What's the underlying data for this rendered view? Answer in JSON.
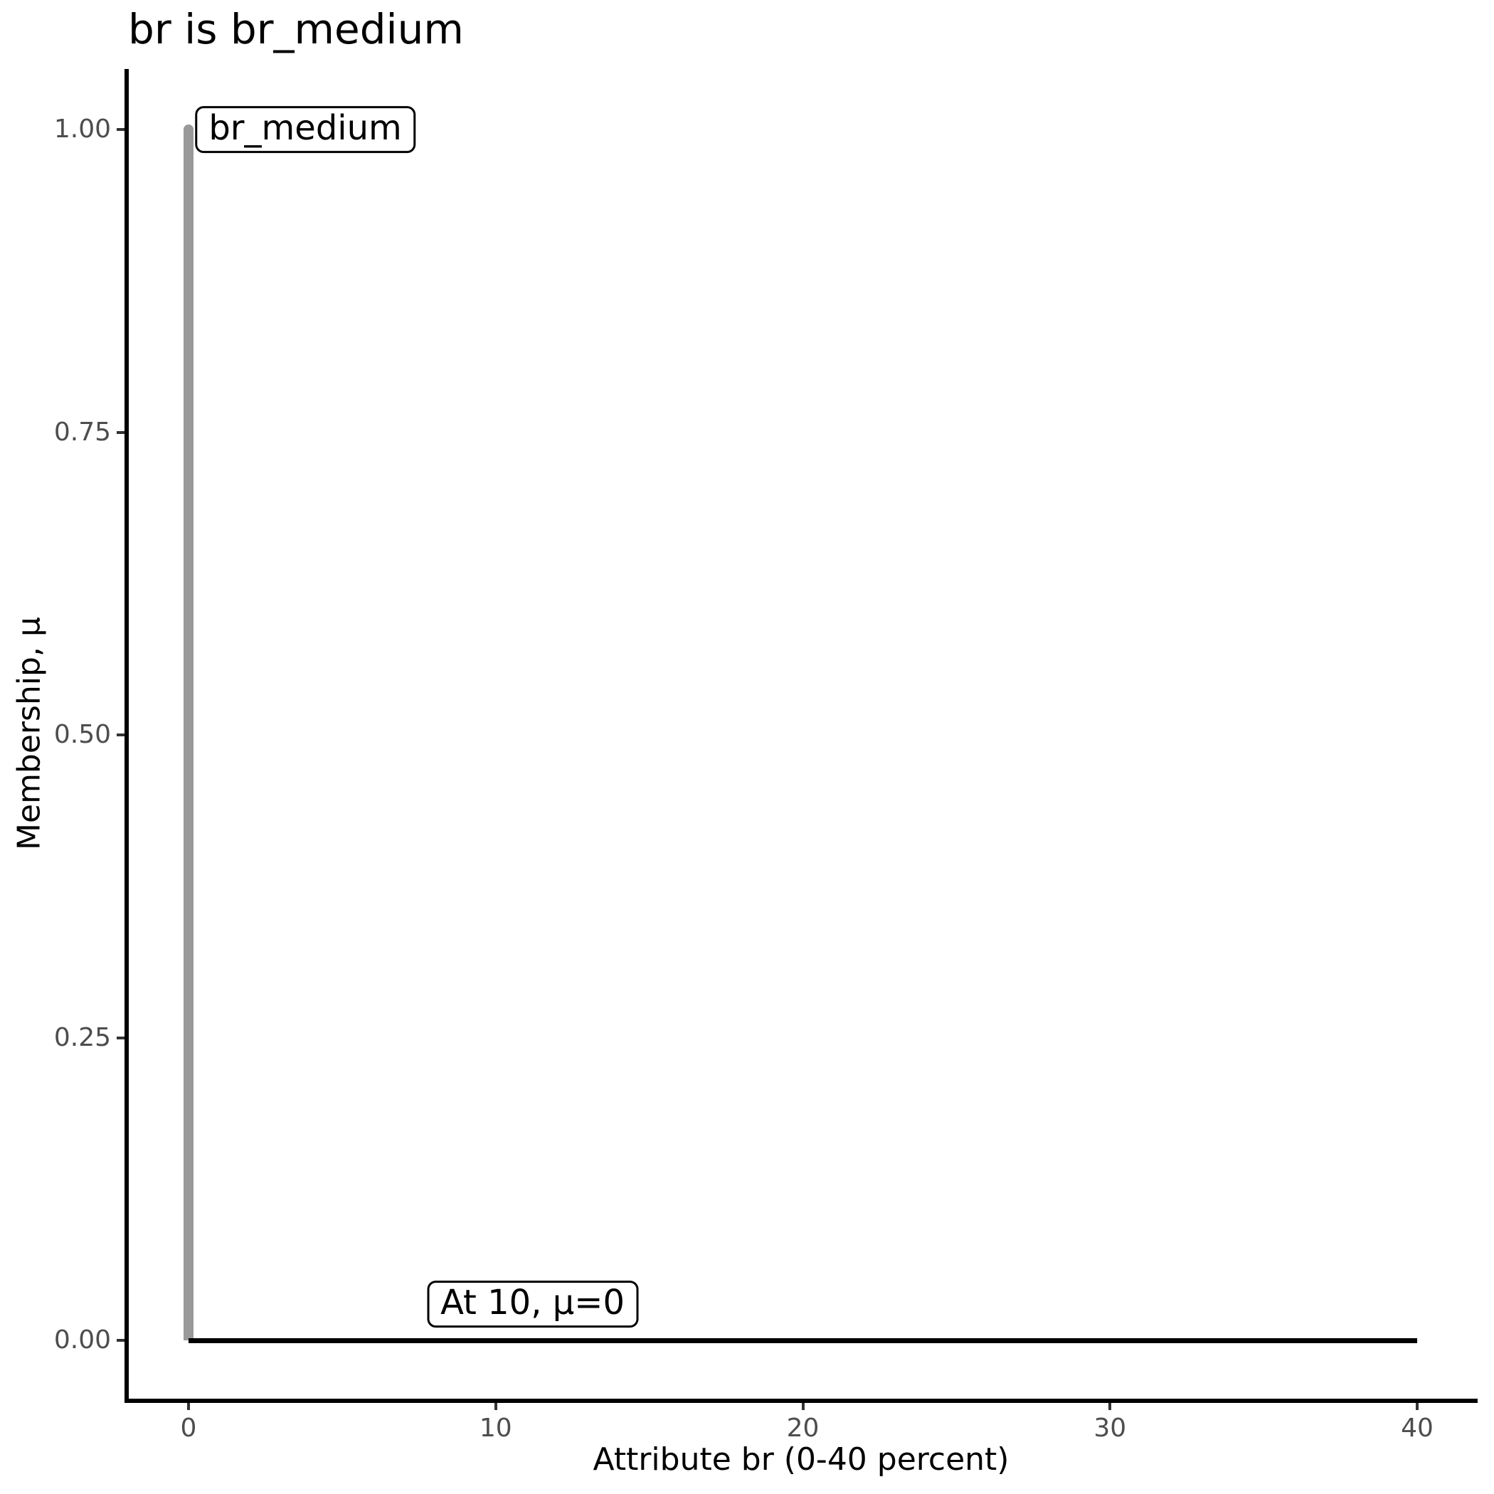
{
  "chart_data": {
    "type": "line",
    "title": "br is br_medium",
    "xlabel": "Attribute br (0-40 percent)",
    "ylabel": "Membership, μ",
    "xlim": [
      0,
      40
    ],
    "ylim": [
      0,
      1
    ],
    "grid": false,
    "legend": false,
    "x_ticks": [
      {
        "value": 0,
        "label": "0"
      },
      {
        "value": 10,
        "label": "10"
      },
      {
        "value": 20,
        "label": "20"
      },
      {
        "value": 30,
        "label": "30"
      },
      {
        "value": 40,
        "label": "40"
      }
    ],
    "y_ticks": [
      {
        "value": 0.0,
        "label": "0.00"
      },
      {
        "value": 0.25,
        "label": "0.25"
      },
      {
        "value": 0.5,
        "label": "0.50"
      },
      {
        "value": 0.75,
        "label": "0.75"
      },
      {
        "value": 1.0,
        "label": "1.00"
      }
    ],
    "series": [
      {
        "name": "br_medium membership spike at 0",
        "color": "#999999",
        "points": [
          [
            0,
            0
          ],
          [
            0,
            1
          ]
        ]
      },
      {
        "name": "zero membership baseline",
        "color": "#000000",
        "points": [
          [
            0,
            0
          ],
          [
            40,
            0
          ]
        ]
      }
    ],
    "annotations": [
      {
        "text": "br_medium",
        "x": 3.8,
        "y": 1.0
      },
      {
        "text": "At 10, μ=0",
        "x": 11.2,
        "y": 0.03
      }
    ],
    "colors": {
      "axis": "#000000",
      "tick_mark": "#333333",
      "tick_label": "#4D4D4D",
      "annotation_border": "#000000",
      "annotation_background": "#FFFFFF"
    }
  }
}
